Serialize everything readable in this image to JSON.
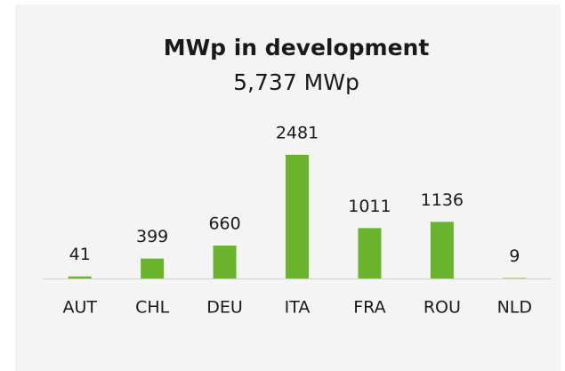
{
  "chart_data": {
    "type": "bar",
    "title": "MWp in development",
    "subtitle": "5,737 MWp",
    "categories": [
      "AUT",
      "CHL",
      "DEU",
      "ITA",
      "FRA",
      "ROU",
      "NLD"
    ],
    "values": [
      41,
      399,
      660,
      2481,
      1011,
      1136,
      9
    ],
    "color": "#6ab42d"
  }
}
